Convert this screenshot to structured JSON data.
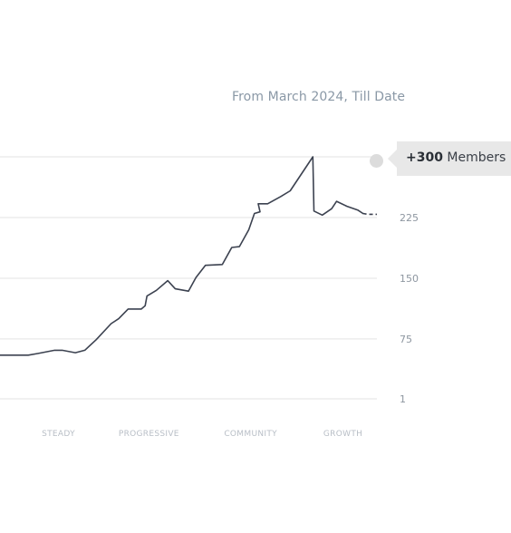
{
  "subtitle": "From  March 2024, Till Date",
  "badge": {
    "value": "+300",
    "label": "Members"
  },
  "colors": {
    "line": "#3c4250",
    "grid": "#e3e3e3",
    "tick": "#8d96a0",
    "category": "#b8bec6",
    "badge_bg": "#e8e8e8"
  },
  "chart_data": {
    "type": "line",
    "title": "",
    "xlabel": "",
    "ylabel": "",
    "y_ticks": [
      1,
      75,
      150,
      225
    ],
    "y_tick_labels": [
      "1",
      "75",
      "150",
      "225"
    ],
    "ylim": [
      1,
      300
    ],
    "xlim": [
      0,
      100
    ],
    "grid": true,
    "categories": [
      {
        "label": "STEADY",
        "x": 15.5
      },
      {
        "label": "PROGRESSIVE",
        "x": 39.5
      },
      {
        "label": "COMMUNITY",
        "x": 66.5
      },
      {
        "label": "GROWTH",
        "x": 91.0
      }
    ],
    "series": [
      {
        "values": [
          [
            0,
            55
          ],
          [
            7.5,
            55
          ],
          [
            10,
            57
          ],
          [
            14.5,
            61
          ],
          [
            16.5,
            61
          ],
          [
            20,
            58
          ],
          [
            22.5,
            61
          ],
          [
            25.5,
            74
          ],
          [
            29.5,
            94
          ],
          [
            31.5,
            100
          ],
          [
            34,
            112
          ],
          [
            37.5,
            112
          ],
          [
            38.5,
            116
          ],
          [
            39,
            128
          ],
          [
            41.5,
            135
          ],
          [
            44.5,
            147
          ],
          [
            46.5,
            137
          ],
          [
            50,
            134
          ],
          [
            52,
            151
          ],
          [
            54.5,
            166
          ],
          [
            59,
            167
          ],
          [
            61.5,
            188
          ],
          [
            63.5,
            189
          ],
          [
            66,
            210
          ],
          [
            67.5,
            230
          ],
          [
            69,
            232
          ],
          [
            68.5,
            242
          ],
          [
            71,
            242
          ],
          [
            74.5,
            251
          ],
          [
            77,
            258
          ],
          [
            83,
            300
          ],
          [
            83.3,
            233
          ],
          [
            85.5,
            228
          ],
          [
            88,
            236
          ],
          [
            89.3,
            245
          ],
          [
            92,
            239
          ],
          [
            95,
            234
          ],
          [
            96.3,
            230
          ],
          [
            97.5,
            229
          ],
          [
            100,
            229
          ]
        ]
      }
    ]
  }
}
